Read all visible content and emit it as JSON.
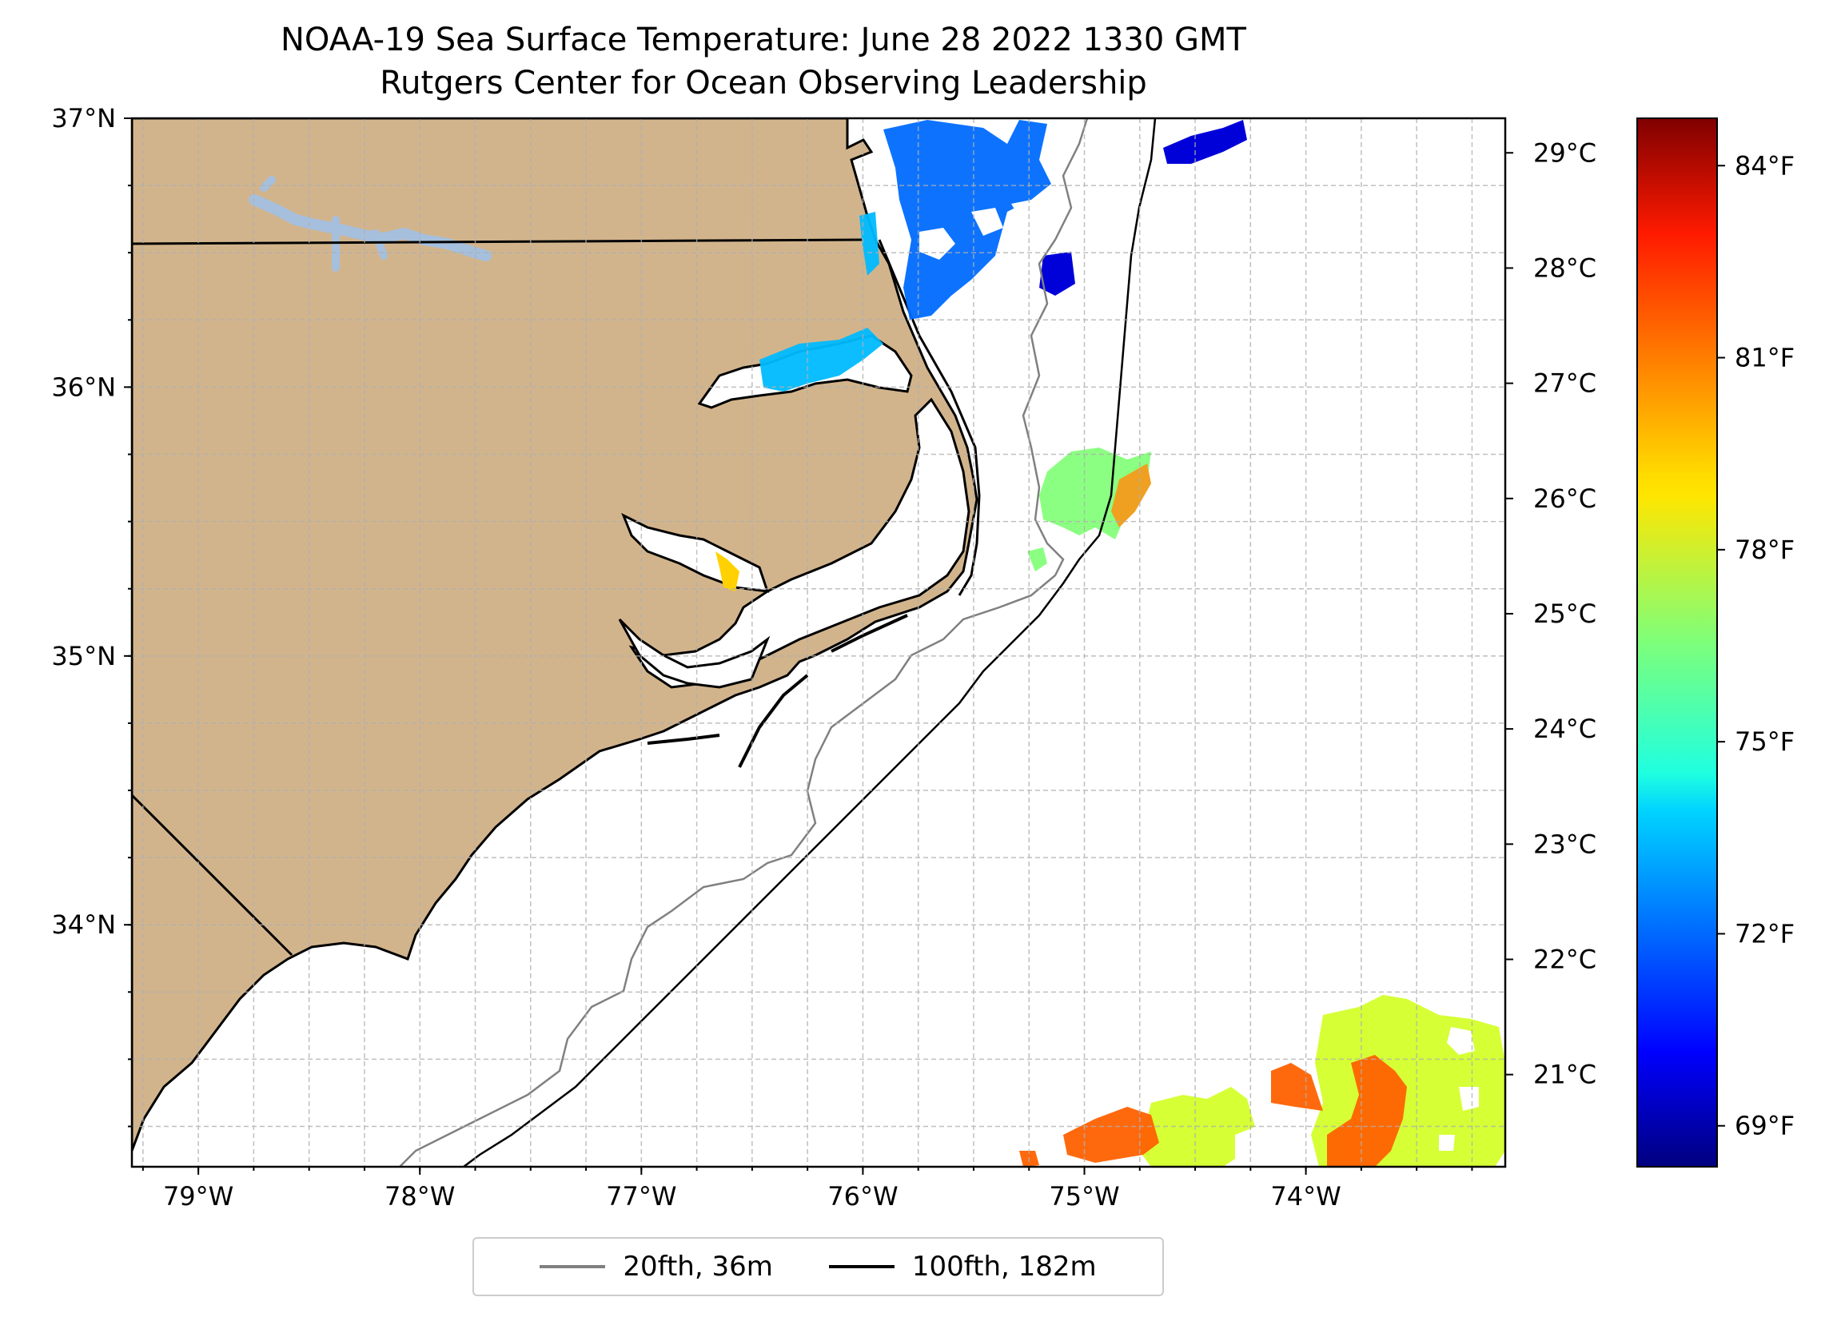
{
  "title": {
    "line1": "NOAA-19 Sea Surface Temperature: June 28 2022 1330 GMT",
    "line2": "Rutgers Center for Ocean Observing Leadership"
  },
  "map": {
    "lon_range": [
      -79.3,
      -73.1
    ],
    "lat_range": [
      33.1,
      37.0
    ],
    "lon_ticks": [
      -79,
      -78,
      -77,
      -76,
      -75,
      -74
    ],
    "lat_ticks": [
      34,
      35,
      36,
      37
    ],
    "lon_tick_labels": [
      "79°W",
      "78°W",
      "77°W",
      "76°W",
      "75°W",
      "74°W"
    ],
    "lat_tick_labels": [
      "34°N",
      "35°N",
      "36°N",
      "37°N"
    ],
    "grid": true,
    "land_color": "#d2b48c",
    "lake_color": "#a5bfdd"
  },
  "legend": {
    "items": [
      {
        "label": "20fth, 36m",
        "color": "#808080"
      },
      {
        "label": "100fth, 182m",
        "color": "#000000"
      }
    ],
    "placement": "bottom-center"
  },
  "colorbar": {
    "colormap": "jet",
    "range_c": [
      20.2,
      29.3
    ],
    "celsius_ticks": [
      21,
      22,
      23,
      24,
      25,
      26,
      27,
      28,
      29
    ],
    "celsius_labels": [
      "21°C",
      "22°C",
      "23°C",
      "24°C",
      "25°C",
      "26°C",
      "27°C",
      "28°C",
      "29°C"
    ],
    "fahrenheit_ticks": [
      69,
      72,
      75,
      78,
      81,
      84
    ],
    "fahrenheit_labels": [
      "69°F",
      "72°F",
      "75°F",
      "78°F",
      "81°F",
      "84°F"
    ]
  },
  "sst_patches": [
    {
      "region": "north-offshore",
      "temp_c": 22.3
    },
    {
      "region": "north-coastal",
      "temp_c": 23.0
    },
    {
      "region": "gulf-stream-edge",
      "temp_c": 24.8
    },
    {
      "region": "southeast-warm",
      "temp_c": 27.3
    },
    {
      "region": "southeast-mixed",
      "temp_c": 25.5
    }
  ]
}
